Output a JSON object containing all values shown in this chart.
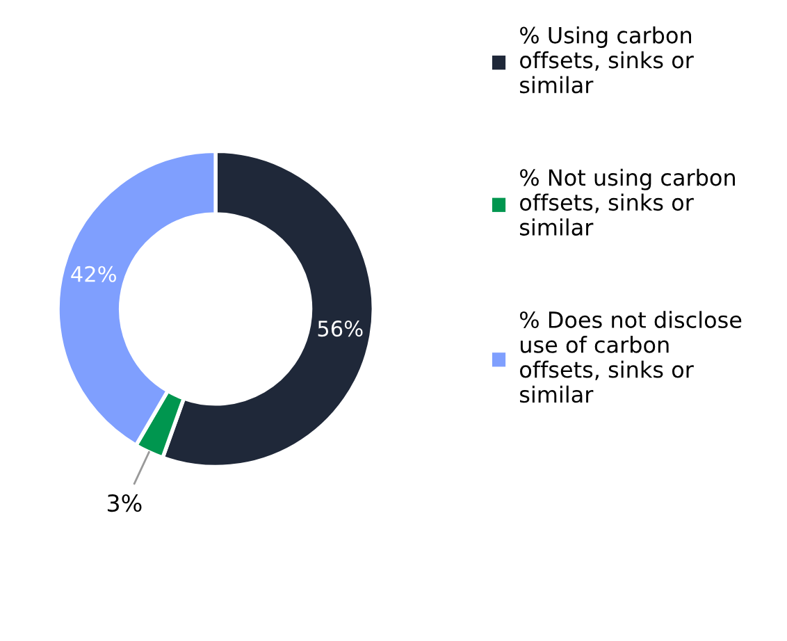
{
  "chart_data": {
    "type": "donut",
    "categories": [
      "% Using carbon\noffsets, sinks or\nsimilar",
      "% Not using carbon\noffsets, sinks or\nsimilar",
      "% Does not disclose\nuse of carbon\noffsets, sinks or\nsimilar"
    ],
    "values": [
      56,
      3,
      42
    ],
    "colors": [
      "#1f2839",
      "#00964f",
      "#7f9ffe"
    ],
    "value_labels": [
      "56%",
      "3%",
      "42%"
    ],
    "legend": "right"
  }
}
